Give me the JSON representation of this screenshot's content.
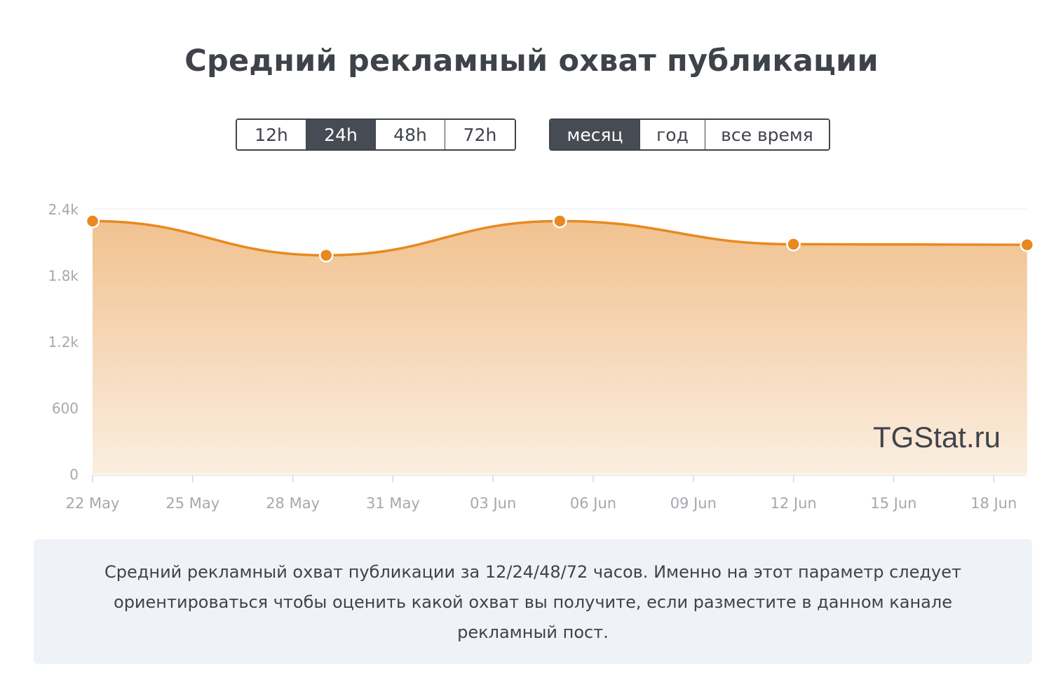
{
  "title": "Средний рекламный охват публикации",
  "hour_buttons": [
    {
      "label": "12h",
      "active": false
    },
    {
      "label": "24h",
      "active": true
    },
    {
      "label": "48h",
      "active": false
    },
    {
      "label": "72h",
      "active": false
    }
  ],
  "period_buttons": [
    {
      "label": "месяц",
      "active": true
    },
    {
      "label": "год",
      "active": false
    },
    {
      "label": "все время",
      "active": false
    }
  ],
  "watermark": "TGStat.ru",
  "colors": {
    "line": "#e8891f",
    "fill_top": "#f1c290",
    "fill_bottom": "#fbeee0",
    "axis_text": "#a5a8ad",
    "grid": "#ececee",
    "active_button": "#474b53"
  },
  "chart_data": {
    "type": "area",
    "title": "Средний рекламный охват публикации",
    "xlabel": "",
    "ylabel": "",
    "ylim": [
      0,
      2400
    ],
    "y_ticks": [
      {
        "value": 0,
        "label": "0"
      },
      {
        "value": 600,
        "label": "600"
      },
      {
        "value": 1200,
        "label": "1.2k"
      },
      {
        "value": 1800,
        "label": "1.8k"
      },
      {
        "value": 2400,
        "label": "2.4k"
      }
    ],
    "x_ticks": [
      "22 May",
      "25 May",
      "28 May",
      "31 May",
      "03 Jun",
      "06 Jun",
      "09 Jun",
      "12 Jun",
      "15 Jun",
      "18 Jun"
    ],
    "series": [
      {
        "points": [
          {
            "x": "22 May",
            "y": 2290
          },
          {
            "x": "29 May",
            "y": 1980
          },
          {
            "x": "05 Jun",
            "y": 2290
          },
          {
            "x": "12 Jun",
            "y": 2080
          },
          {
            "x": "19 Jun",
            "y": 2075
          }
        ]
      }
    ],
    "grid": true,
    "legend": "none"
  },
  "note": "Средний рекламный охват публикации за 12/24/48/72 часов. Именно на этот параметр следует ориентироваться чтобы оценить какой охват вы получите, если разместите в данном канале рекламный пост."
}
